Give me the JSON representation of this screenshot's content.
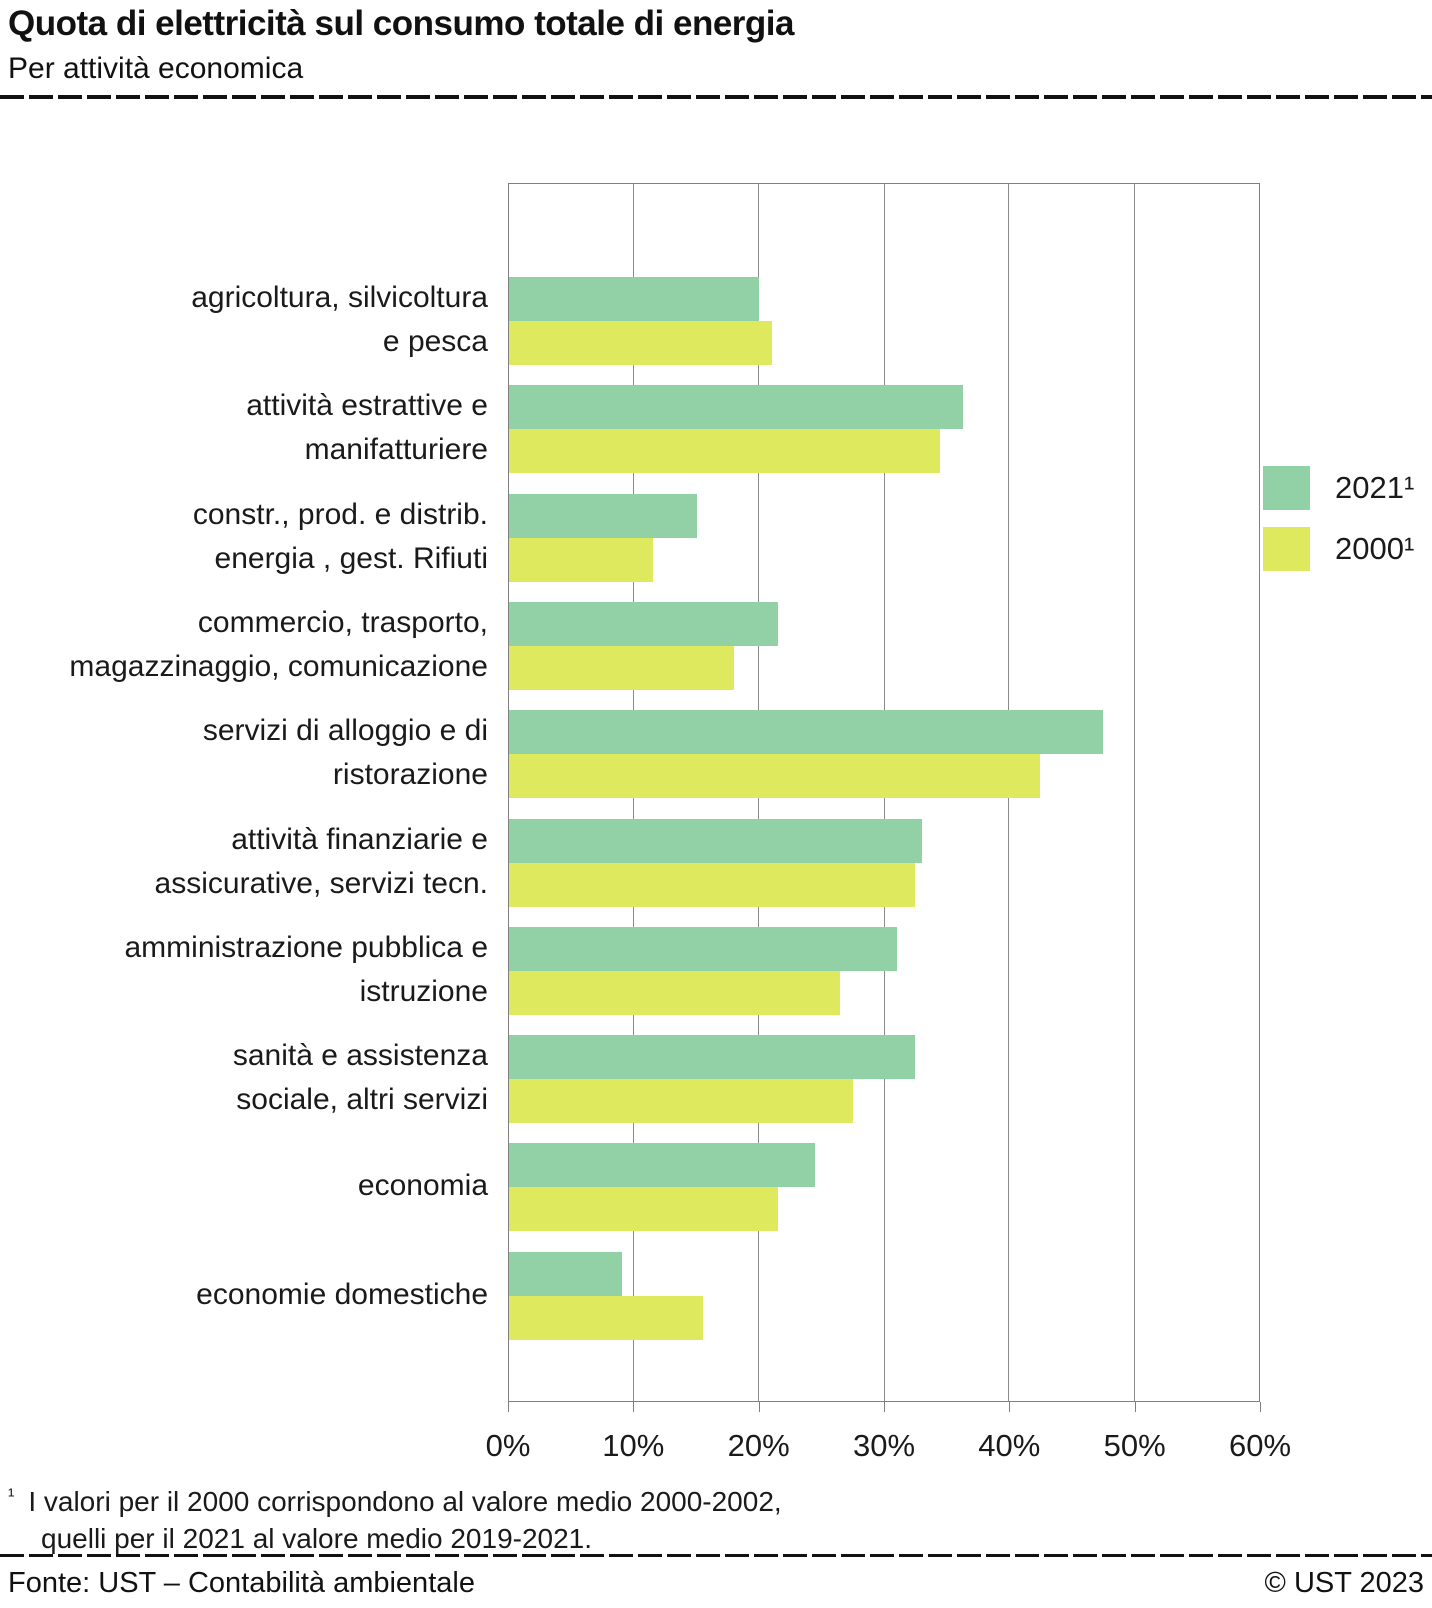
{
  "header": {
    "title": "Quota di elettricità sul consumo totale di energia",
    "subtitle": "Per attività economica"
  },
  "chart_data": {
    "type": "bar",
    "orientation": "horizontal",
    "title": "Quota di elettricità sul consumo totale di energia",
    "subtitle": "Per attività economica",
    "categories": [
      [
        "agricoltura, silvicoltura",
        "e pesca"
      ],
      [
        "attività estrattive e",
        "manifatturiere"
      ],
      [
        "constr., prod. e distrib.",
        "energia , gest. Rifiuti"
      ],
      [
        "commercio, trasporto,",
        "magazzinaggio, comunicazione"
      ],
      [
        "servizi di alloggio e di",
        "ristorazione"
      ],
      [
        "attività finanziarie e",
        "assicurative, servizi tecn."
      ],
      [
        "amministrazione pubblica e",
        "istruzione"
      ],
      [
        "sanità e assistenza",
        "sociale, altri servizi"
      ],
      [
        "economia"
      ],
      [
        "economie domestiche"
      ]
    ],
    "series": [
      {
        "name": "2021¹",
        "color": "#92d1a6",
        "values": [
          20.0,
          36.3,
          15.0,
          21.5,
          47.5,
          33.0,
          31.0,
          32.5,
          24.5,
          9.0
        ]
      },
      {
        "name": "2000¹",
        "color": "#dfe95e",
        "values": [
          21.0,
          34.5,
          11.5,
          18.0,
          42.5,
          32.5,
          26.5,
          27.5,
          21.5,
          15.5
        ]
      }
    ],
    "xlim": [
      0,
      60
    ],
    "xticks": [
      0,
      10,
      20,
      30,
      40,
      50,
      60
    ],
    "tick_suffix": "%",
    "grid": "vertical",
    "legend_position": "right"
  },
  "legend": {
    "items": [
      {
        "label": "2021¹",
        "color": "#92d1a6"
      },
      {
        "label": "2000¹",
        "color": "#dfe95e"
      }
    ]
  },
  "footnote": {
    "marker": "¹",
    "line1": "I valori per il 2000 corrispondono al valore medio 2000-2002,",
    "line2": "quelli per il 2021 al valore medio 2019-2021."
  },
  "footer": {
    "source": "Fonte: UST – Contabilità ambientale",
    "copyright": "© UST 2023"
  }
}
